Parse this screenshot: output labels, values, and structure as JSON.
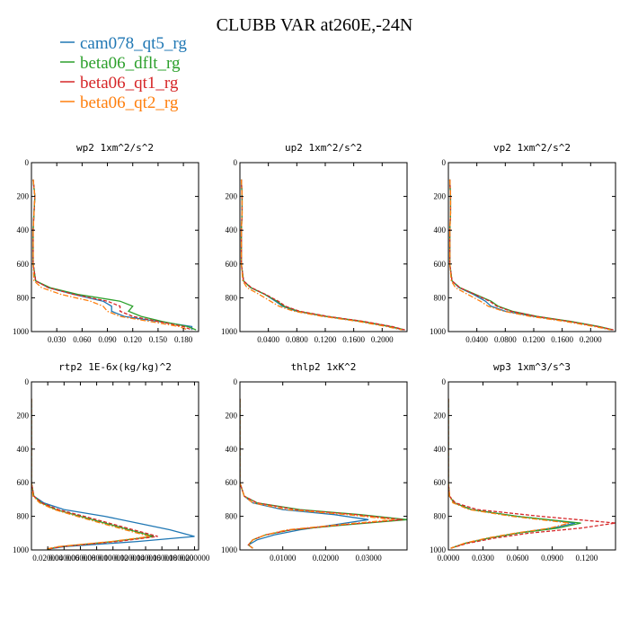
{
  "title": "CLUBB VAR at260E,-24N",
  "legend": [
    {
      "name": "cam078_qt5_rg",
      "color": "#1f77b4",
      "dash": "solid"
    },
    {
      "name": "beta06_dflt_rg",
      "color": "#2ca02c",
      "dash": "solid"
    },
    {
      "name": "beta06_qt1_rg",
      "color": "#d62728",
      "dash": "dashed"
    },
    {
      "name": "beta06_qt2_rg",
      "color": "#ff7f0e",
      "dash": "dashdot"
    }
  ],
  "chart_data": [
    {
      "type": "line",
      "title": "wp2  1xm^2/s^2",
      "ylim": [
        1000,
        0
      ],
      "xlim": [
        0,
        0.198
      ],
      "yticks": [
        "0",
        "200",
        "400",
        "600",
        "800",
        "1000"
      ],
      "ytick_values": [
        0,
        200,
        400,
        600,
        800,
        1000
      ],
      "xticks": [
        "0.030",
        "0.060",
        "0.090",
        "0.120",
        "0.150",
        "0.180"
      ],
      "xtick_values": [
        0.03,
        0.06,
        0.09,
        0.12,
        0.15,
        0.18
      ],
      "y": [
        100,
        200,
        300,
        400,
        500,
        600,
        700,
        740,
        780,
        820,
        850,
        880,
        910,
        940,
        970,
        990
      ],
      "series": [
        {
          "name": "cam078_qt5_rg",
          "values": [
            0.002,
            0.004,
            0.003,
            0.002,
            0.002,
            0.002,
            0.005,
            0.02,
            0.05,
            0.085,
            0.095,
            0.095,
            0.11,
            0.15,
            0.19,
            0.19
          ]
        },
        {
          "name": "beta06_dflt_rg",
          "values": [
            0.002,
            0.004,
            0.003,
            0.002,
            0.002,
            0.002,
            0.005,
            0.022,
            0.055,
            0.105,
            0.12,
            0.115,
            0.13,
            0.155,
            0.185,
            0.195
          ]
        },
        {
          "name": "beta06_qt1_rg",
          "values": [
            0.002,
            0.004,
            0.003,
            0.002,
            0.002,
            0.002,
            0.005,
            0.02,
            0.05,
            0.09,
            0.105,
            0.105,
            0.12,
            0.15,
            0.18,
            0.19
          ]
        },
        {
          "name": "beta06_qt2_rg",
          "values": [
            0.002,
            0.004,
            0.003,
            0.002,
            0.002,
            0.002,
            0.003,
            0.012,
            0.035,
            0.07,
            0.085,
            0.09,
            0.105,
            0.14,
            0.175,
            0.185
          ]
        }
      ]
    },
    {
      "type": "line",
      "title": "up2  1xm^2/s^2",
      "ylim": [
        1000,
        0
      ],
      "xlim": [
        0,
        0.235
      ],
      "yticks": [
        "0",
        "200",
        "400",
        "600",
        "800",
        "1000"
      ],
      "ytick_values": [
        0,
        200,
        400,
        600,
        800,
        1000
      ],
      "xticks": [
        "0.0400",
        "0.0800",
        "0.1200",
        "0.1600",
        "0.2000"
      ],
      "xtick_values": [
        0.04,
        0.08,
        0.12,
        0.16,
        0.2
      ],
      "y": [
        100,
        200,
        300,
        400,
        500,
        600,
        700,
        740,
        780,
        820,
        850,
        880,
        910,
        940,
        970,
        990
      ],
      "series": [
        {
          "name": "cam078_qt5_rg",
          "values": [
            0.002,
            0.003,
            0.003,
            0.002,
            0.002,
            0.002,
            0.005,
            0.015,
            0.035,
            0.05,
            0.06,
            0.08,
            0.12,
            0.17,
            0.21,
            0.23
          ]
        },
        {
          "name": "beta06_dflt_rg",
          "values": [
            0.002,
            0.003,
            0.003,
            0.002,
            0.002,
            0.002,
            0.005,
            0.015,
            0.035,
            0.052,
            0.062,
            0.082,
            0.122,
            0.172,
            0.212,
            0.232
          ]
        },
        {
          "name": "beta06_qt1_rg",
          "values": [
            0.002,
            0.003,
            0.003,
            0.002,
            0.002,
            0.002,
            0.005,
            0.016,
            0.036,
            0.054,
            0.064,
            0.084,
            0.124,
            0.174,
            0.214,
            0.232
          ]
        },
        {
          "name": "beta06_qt2_rg",
          "values": [
            0.002,
            0.003,
            0.003,
            0.002,
            0.002,
            0.002,
            0.004,
            0.01,
            0.027,
            0.043,
            0.055,
            0.076,
            0.116,
            0.166,
            0.206,
            0.228
          ]
        }
      ]
    },
    {
      "type": "line",
      "title": "vp2  1xm^2/s^2",
      "ylim": [
        1000,
        0
      ],
      "xlim": [
        0,
        0.235
      ],
      "yticks": [
        "0",
        "200",
        "400",
        "600",
        "800",
        "1000"
      ],
      "ytick_values": [
        0,
        200,
        400,
        600,
        800,
        1000
      ],
      "xticks": [
        "0.0400",
        "0.0800",
        "0.1200",
        "0.1600",
        "0.2000"
      ],
      "xtick_values": [
        0.04,
        0.08,
        0.12,
        0.16,
        0.2
      ],
      "y": [
        100,
        200,
        300,
        400,
        500,
        600,
        700,
        740,
        780,
        820,
        850,
        880,
        910,
        940,
        970,
        990
      ],
      "series": [
        {
          "name": "cam078_qt5_rg",
          "values": [
            0.002,
            0.003,
            0.003,
            0.002,
            0.002,
            0.002,
            0.005,
            0.015,
            0.035,
            0.052,
            0.06,
            0.08,
            0.12,
            0.17,
            0.21,
            0.23
          ]
        },
        {
          "name": "beta06_dflt_rg",
          "values": [
            0.002,
            0.003,
            0.003,
            0.002,
            0.002,
            0.002,
            0.005,
            0.016,
            0.038,
            0.06,
            0.07,
            0.09,
            0.125,
            0.172,
            0.212,
            0.232
          ]
        },
        {
          "name": "beta06_qt1_rg",
          "values": [
            0.002,
            0.003,
            0.003,
            0.002,
            0.002,
            0.002,
            0.005,
            0.016,
            0.037,
            0.058,
            0.068,
            0.088,
            0.124,
            0.17,
            0.21,
            0.232
          ]
        },
        {
          "name": "beta06_qt2_rg",
          "values": [
            0.002,
            0.003,
            0.003,
            0.002,
            0.002,
            0.002,
            0.004,
            0.01,
            0.027,
            0.045,
            0.056,
            0.078,
            0.115,
            0.164,
            0.205,
            0.228
          ]
        }
      ]
    },
    {
      "type": "line",
      "title": "rtp2  1E-6x(kg/kg)^2",
      "ylim": [
        1000,
        0
      ],
      "xlim": [
        0,
        0.205
      ],
      "yticks": [
        "0",
        "200",
        "400",
        "600",
        "800",
        "1000"
      ],
      "ytick_values": [
        0,
        200,
        400,
        600,
        800,
        1000
      ],
      "xticks": [
        "0.020000",
        "0.040000",
        "0.060000",
        "0.080000",
        "0.100000",
        "0.120000",
        "0.140000",
        "0.160000",
        "0.180000",
        "0.200000"
      ],
      "xtick_values": [
        0.02,
        0.04,
        0.06,
        0.08,
        0.1,
        0.12,
        0.14,
        0.16,
        0.18,
        0.2
      ],
      "y": [
        100,
        200,
        300,
        400,
        500,
        600,
        680,
        720,
        760,
        800,
        840,
        880,
        920,
        950,
        980,
        995
      ],
      "series": [
        {
          "name": "cam078_qt5_rg",
          "values": [
            0.0,
            0.0,
            0.0,
            0.0,
            0.0,
            0.0,
            0.003,
            0.015,
            0.04,
            0.09,
            0.13,
            0.17,
            0.2,
            0.13,
            0.04,
            0.02
          ]
        },
        {
          "name": "beta06_dflt_rg",
          "values": [
            0.0,
            0.0,
            0.0,
            0.0,
            0.0,
            0.0,
            0.003,
            0.012,
            0.03,
            0.06,
            0.09,
            0.12,
            0.15,
            0.1,
            0.035,
            0.02
          ]
        },
        {
          "name": "beta06_qt1_rg",
          "values": [
            0.0,
            0.0,
            0.0,
            0.0,
            0.0,
            0.0,
            0.003,
            0.013,
            0.033,
            0.065,
            0.095,
            0.125,
            0.155,
            0.105,
            0.037,
            0.02
          ]
        },
        {
          "name": "beta06_qt2_rg",
          "values": [
            0.0,
            0.0,
            0.0,
            0.0,
            0.0,
            0.0,
            0.002,
            0.01,
            0.028,
            0.056,
            0.085,
            0.115,
            0.145,
            0.098,
            0.033,
            0.018
          ]
        }
      ]
    },
    {
      "type": "line",
      "title": "thlp2  1xK^2",
      "ylim": [
        1000,
        0
      ],
      "xlim": [
        0,
        0.039
      ],
      "yticks": [
        "0",
        "200",
        "400",
        "600",
        "800",
        "1000"
      ],
      "ytick_values": [
        0,
        200,
        400,
        600,
        800,
        1000
      ],
      "xticks": [
        "0.01000",
        "0.02000",
        "0.03000"
      ],
      "xtick_values": [
        0.01,
        0.02,
        0.03
      ],
      "y": [
        100,
        200,
        300,
        400,
        500,
        600,
        680,
        720,
        760,
        790,
        820,
        850,
        880,
        910,
        940,
        970,
        990
      ],
      "series": [
        {
          "name": "cam078_qt5_rg",
          "values": [
            0.0,
            0.0,
            0.0,
            0.0,
            0.0,
            0.0,
            0.001,
            0.003,
            0.01,
            0.022,
            0.03,
            0.022,
            0.014,
            0.008,
            0.004,
            0.002,
            0.003
          ]
        },
        {
          "name": "beta06_dflt_rg",
          "values": [
            0.0,
            0.0,
            0.0,
            0.0,
            0.0,
            0.0,
            0.001,
            0.004,
            0.014,
            0.028,
            0.039,
            0.025,
            0.012,
            0.006,
            0.003,
            0.002,
            0.003
          ]
        },
        {
          "name": "beta06_qt1_rg",
          "values": [
            0.0,
            0.0,
            0.0,
            0.0,
            0.0,
            0.0,
            0.001,
            0.004,
            0.013,
            0.027,
            0.038,
            0.024,
            0.012,
            0.006,
            0.003,
            0.002,
            0.003
          ]
        },
        {
          "name": "beta06_qt2_rg",
          "values": [
            0.0,
            0.0,
            0.0,
            0.0,
            0.0,
            0.0,
            0.001,
            0.003,
            0.011,
            0.025,
            0.036,
            0.023,
            0.011,
            0.006,
            0.003,
            0.002,
            0.003
          ]
        }
      ]
    },
    {
      "type": "line",
      "title": "wp3  1xm^3/s^3",
      "ylim": [
        1000,
        0
      ],
      "xlim": [
        0,
        0.145
      ],
      "yticks": [
        "0",
        "200",
        "400",
        "600",
        "800",
        "1000"
      ],
      "ytick_values": [
        0,
        200,
        400,
        600,
        800,
        1000
      ],
      "xticks": [
        "0.0000",
        "0.0300",
        "0.0600",
        "0.0900",
        "0.1200"
      ],
      "xtick_values": [
        0.0,
        0.03,
        0.06,
        0.09,
        0.12
      ],
      "y": [
        100,
        200,
        300,
        400,
        500,
        600,
        680,
        720,
        760,
        800,
        840,
        870,
        900,
        930,
        960,
        990
      ],
      "series": [
        {
          "name": "cam078_qt5_rg",
          "values": [
            0.0,
            0.0,
            0.0,
            0.0,
            0.0,
            0.0,
            0.001,
            0.005,
            0.02,
            0.06,
            0.11,
            0.09,
            0.06,
            0.035,
            0.015,
            0.002
          ]
        },
        {
          "name": "beta06_dflt_rg",
          "values": [
            0.0,
            0.0,
            0.0,
            0.0,
            0.0,
            0.0,
            0.001,
            0.005,
            0.02,
            0.06,
            0.115,
            0.095,
            0.06,
            0.035,
            0.015,
            0.002
          ]
        },
        {
          "name": "beta06_qt1_rg",
          "values": [
            0.0,
            0.0,
            0.0,
            0.0,
            0.0,
            0.0,
            0.001,
            0.006,
            0.025,
            0.08,
            0.145,
            0.115,
            0.07,
            0.04,
            0.017,
            0.002
          ]
        },
        {
          "name": "beta06_qt2_rg",
          "values": [
            0.0,
            0.0,
            0.0,
            0.0,
            0.0,
            0.0,
            0.001,
            0.004,
            0.018,
            0.055,
            0.105,
            0.088,
            0.058,
            0.033,
            0.014,
            0.002
          ]
        }
      ]
    }
  ]
}
